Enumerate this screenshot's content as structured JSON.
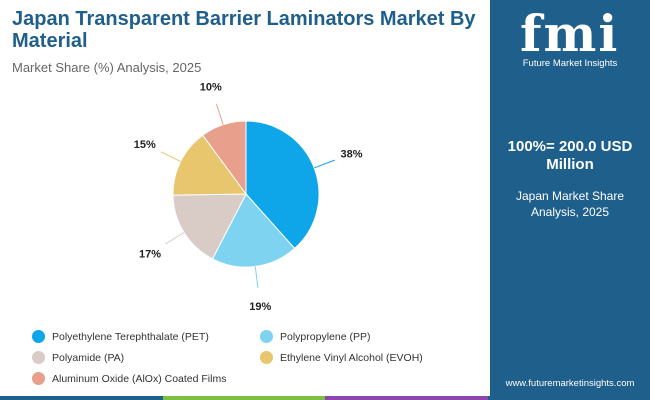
{
  "header": {
    "title": "Japan Transparent Barrier Laminators Market By Material",
    "subtitle": "Market Share (%) Analysis, 2025"
  },
  "sidebar": {
    "logo_text": "fmi",
    "logo_caption": "Future Market Insights",
    "total": "100%= 200.0 USD Million",
    "market_share": "Japan Market Share Analysis, 2025",
    "website": "www.futuremarketinsights.com"
  },
  "colors": {
    "brand": "#1f5f8b",
    "bottom_bar": [
      "#1f5f8b",
      "#7bc043",
      "#8e44ad",
      "#1f5f8b"
    ]
  },
  "chart_data": {
    "type": "pie",
    "title": "Japan Transparent Barrier Laminators Market By Material",
    "subtitle": "Market Share (%) Analysis, 2025",
    "slices": [
      {
        "name": "Polyethylene Terephthalate (PET)",
        "value": 38,
        "label": "38%",
        "color": "#0ea5e9"
      },
      {
        "name": "Polypropylene (PP)",
        "value": 19,
        "label": "19%",
        "color": "#7dd3f0"
      },
      {
        "name": "Polyamide (PA)",
        "value": 17,
        "label": "17%",
        "color": "#d9ccc6"
      },
      {
        "name": "Ethylene Vinyl Alcohol (EVOH)",
        "value": 15,
        "label": "15%",
        "color": "#e8c66e"
      },
      {
        "name": "Aluminum Oxide (AlOx) Coated Films",
        "value": 10,
        "label": "10%",
        "color": "#e89f8c"
      }
    ],
    "legend_position": "bottom"
  }
}
